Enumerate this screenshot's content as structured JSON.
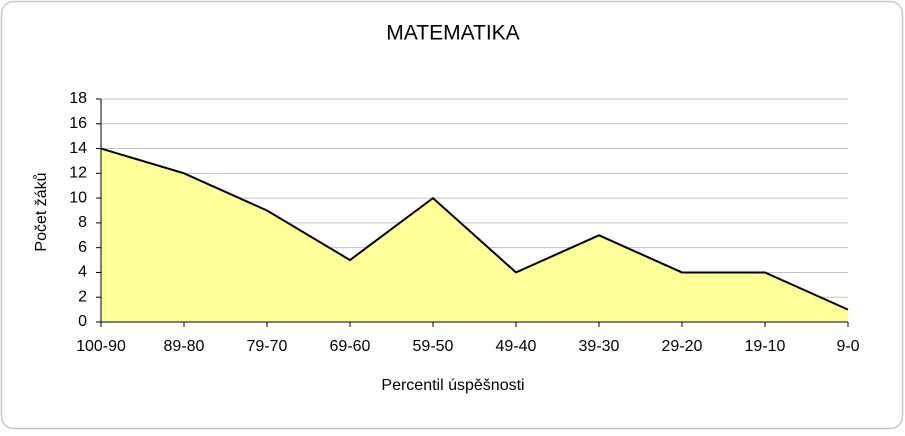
{
  "chart_data": {
    "type": "area",
    "title": "MATEMATIKA",
    "x_label": "Percentil úspěšnosti",
    "y_label": "Počet žáků",
    "categories": [
      "100-90",
      "89-80",
      "79-70",
      "69-60",
      "59-50",
      "49-40",
      "39-30",
      "29-20",
      "19-10",
      "9-0"
    ],
    "values": [
      14,
      12,
      9,
      5,
      10,
      4,
      7,
      4,
      4,
      1
    ],
    "color": "#ffff99",
    "line_color": "#000000",
    "ylim": [
      0,
      18
    ],
    "yticks": [
      0,
      2,
      4,
      6,
      8,
      10,
      12,
      14,
      16,
      18
    ],
    "grid": true
  }
}
